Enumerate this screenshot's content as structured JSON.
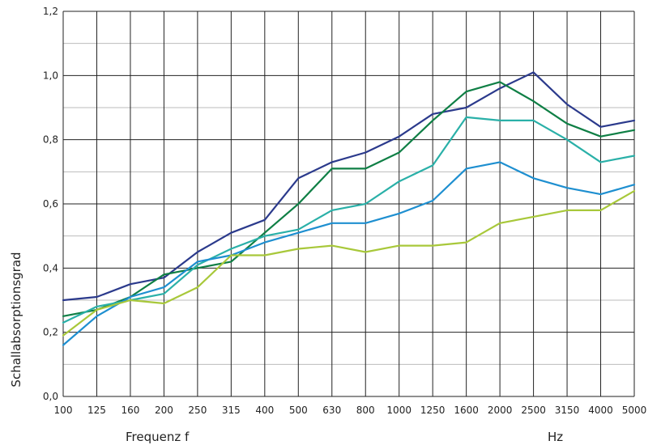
{
  "chart_data": {
    "type": "line",
    "xlabel": "Frequenz f",
    "xunit": "Hz",
    "ylabel": "Schallabsorptionsgrad",
    "ylim": [
      0,
      1.2
    ],
    "yticks": [
      "0,0",
      "0,2",
      "0,4",
      "0,6",
      "0,8",
      "1,0",
      "1,2"
    ],
    "categories": [
      "100",
      "125",
      "160",
      "200",
      "250",
      "315",
      "400",
      "500",
      "630",
      "800",
      "1000",
      "1250",
      "1600",
      "2000",
      "2500",
      "3150",
      "4000",
      "5000"
    ],
    "grid": true,
    "series": [
      {
        "color": "#2b3a8c",
        "values": [
          0.3,
          0.31,
          0.35,
          0.37,
          0.45,
          0.51,
          0.55,
          0.68,
          0.73,
          0.76,
          0.81,
          0.88,
          0.9,
          0.96,
          1.01,
          0.91,
          0.84,
          0.86
        ]
      },
      {
        "color": "#0f7f45",
        "values": [
          0.25,
          0.27,
          0.31,
          0.38,
          0.4,
          0.42,
          0.51,
          0.6,
          0.71,
          0.71,
          0.76,
          0.86,
          0.95,
          0.98,
          0.92,
          0.85,
          0.81,
          0.83
        ]
      },
      {
        "color": "#2ab0a8",
        "values": [
          0.23,
          0.28,
          0.3,
          0.32,
          0.41,
          0.46,
          0.5,
          0.52,
          0.58,
          0.6,
          0.67,
          0.72,
          0.87,
          0.86,
          0.86,
          0.8,
          0.73,
          0.75
        ]
      },
      {
        "color": "#1e8fd0",
        "values": [
          0.16,
          0.25,
          0.31,
          0.34,
          0.42,
          0.44,
          0.48,
          0.51,
          0.54,
          0.54,
          0.57,
          0.61,
          0.71,
          0.73,
          0.68,
          0.65,
          0.63,
          0.66
        ]
      },
      {
        "color": "#a8c83a",
        "values": [
          0.19,
          0.27,
          0.3,
          0.29,
          0.34,
          0.44,
          0.44,
          0.46,
          0.47,
          0.45,
          0.47,
          0.47,
          0.48,
          0.54,
          0.56,
          0.58,
          0.58,
          0.64
        ]
      }
    ]
  }
}
